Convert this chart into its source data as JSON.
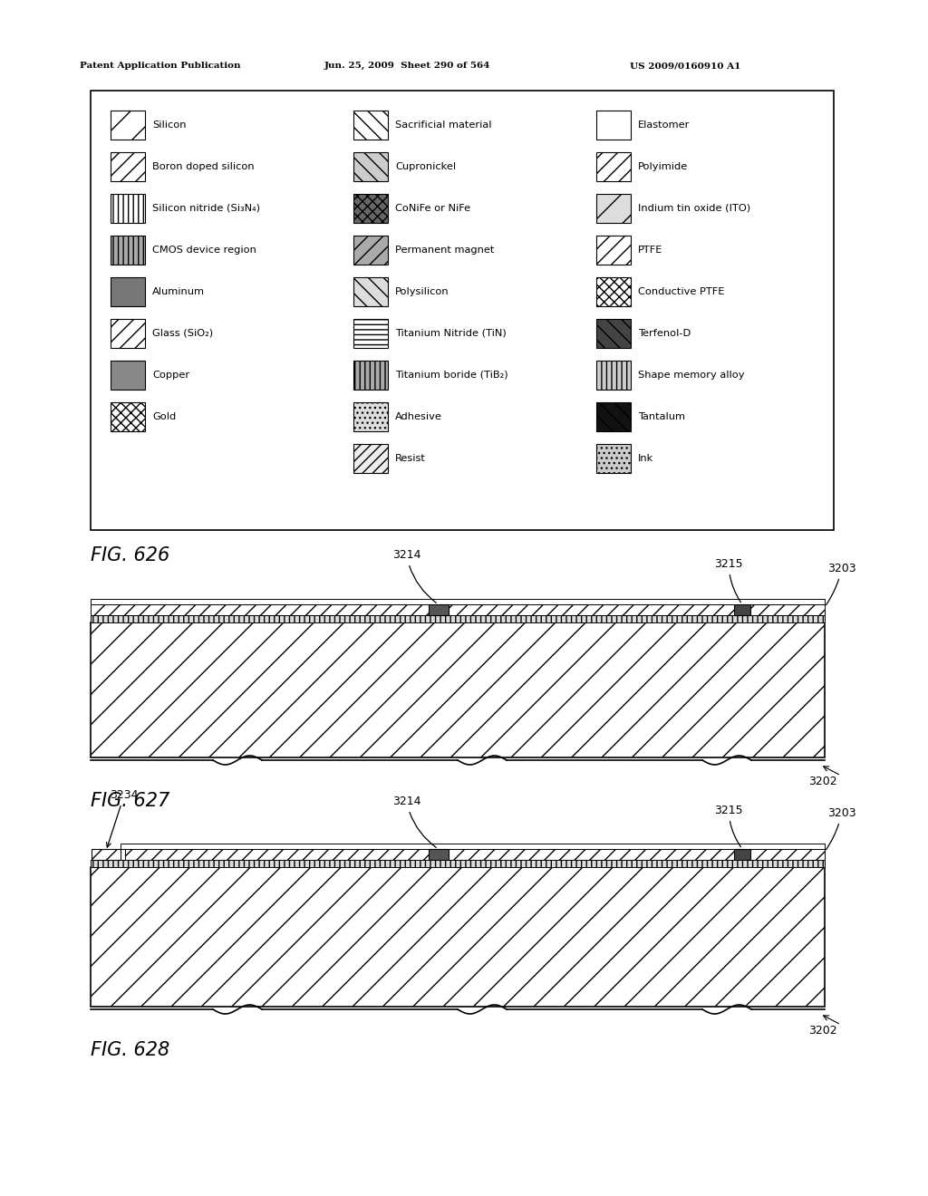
{
  "header_left": "Patent Application Publication",
  "header_mid": "Jun. 25, 2009  Sheet 290 of 564",
  "header_right": "US 2009/0160910 A1",
  "fig626_label": "FIG. 626",
  "fig627_label": "FIG. 627",
  "fig628_label": "FIG. 628",
  "legend_items_col1": [
    "Silicon",
    "Boron doped silicon",
    "Silicon nitride (Si₃N₄)",
    "CMOS device region",
    "Aluminum",
    "Glass (SiO₂)",
    "Copper",
    "Gold"
  ],
  "legend_items_col2": [
    "Sacrificial material",
    "Cupronickel",
    "CoNiFe or NiFe",
    "Permanent magnet",
    "Polysilicon",
    "Titanium Nitride (TiN)",
    "Titanium boride (TiB₂)",
    "Adhesive",
    "Resist"
  ],
  "legend_items_col3": [
    "Elastomer",
    "Polyimide",
    "Indium tin oxide (ITO)",
    "PTFE",
    "Conductive PTFE",
    "Terfenol-D",
    "Shape memory alloy",
    "Tantalum",
    "Ink"
  ],
  "background_color": "#ffffff"
}
